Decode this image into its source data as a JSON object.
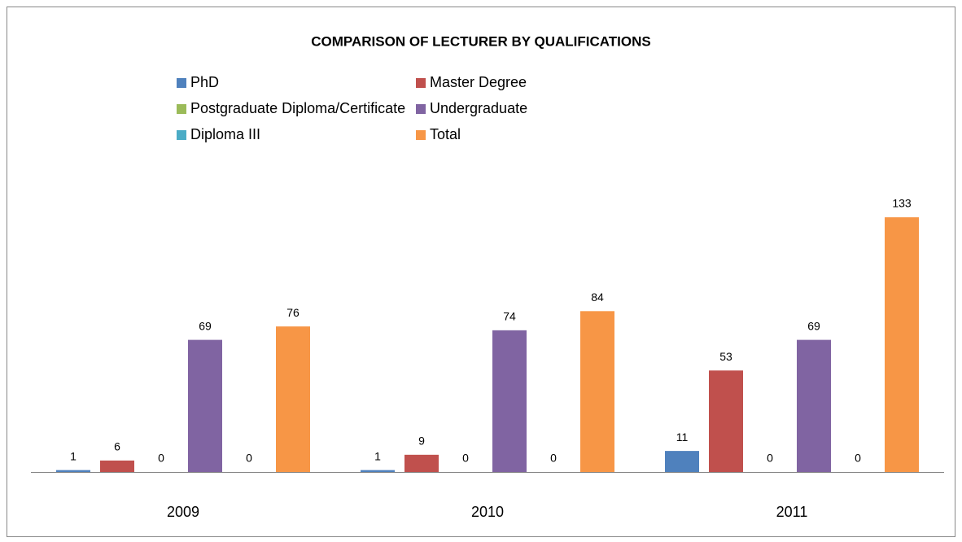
{
  "chart_data": {
    "type": "bar",
    "title": "COMPARISON OF LECTURER BY QUALIFICATIONS",
    "categories": [
      "2009",
      "2010",
      "2011"
    ],
    "series": [
      {
        "name": "PhD",
        "color": "#4f81bd",
        "values": [
          1,
          1,
          11
        ]
      },
      {
        "name": "Master Degree",
        "color": "#c0504d",
        "values": [
          6,
          9,
          53
        ]
      },
      {
        "name": "Postgraduate Diploma/Certificate",
        "color": "#9bbb59",
        "values": [
          0,
          0,
          0
        ]
      },
      {
        "name": "Undergraduate",
        "color": "#8064a2",
        "values": [
          69,
          74,
          69
        ]
      },
      {
        "name": "Diploma III",
        "color": "#4bacc6",
        "values": [
          0,
          0,
          0
        ]
      },
      {
        "name": "Total",
        "color": "#f79646",
        "values": [
          76,
          84,
          133
        ]
      }
    ],
    "legend": "top"
  }
}
